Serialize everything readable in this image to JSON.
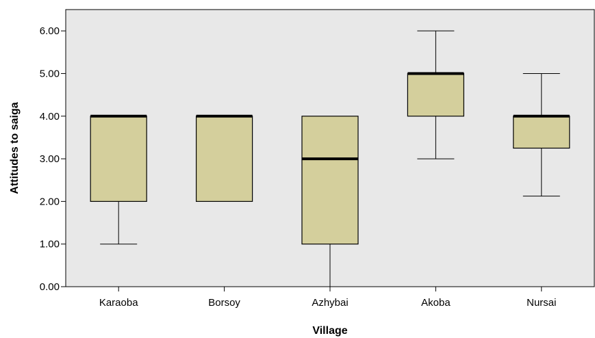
{
  "chart_data": {
    "type": "boxplot",
    "xlabel": "Village",
    "ylabel": "Attitudes to saiga",
    "ylim": [
      0,
      6.5
    ],
    "y_ticks": [
      "0.00",
      "1.00",
      "2.00",
      "3.00",
      "4.00",
      "5.00",
      "6.00"
    ],
    "grid": false,
    "categories": [
      "Karaoba",
      "Borsoy",
      "Azhybai",
      "Akoba",
      "Nursai"
    ],
    "boxes": [
      {
        "category": "Karaoba",
        "whisker_low": 1.0,
        "q1": 2.0,
        "median": 4.0,
        "q3": 4.0,
        "whisker_high": 4.0
      },
      {
        "category": "Borsoy",
        "whisker_low": 2.0,
        "q1": 2.0,
        "median": 4.0,
        "q3": 4.0,
        "whisker_high": 4.0
      },
      {
        "category": "Azhybai",
        "whisker_low": 0.0,
        "q1": 1.0,
        "median": 3.0,
        "q3": 4.0,
        "whisker_high": 4.0
      },
      {
        "category": "Akoba",
        "whisker_low": 3.0,
        "q1": 4.0,
        "median": 5.0,
        "q3": 5.0,
        "whisker_high": 6.0
      },
      {
        "category": "Nursai",
        "whisker_low": 2.125,
        "q1": 3.25,
        "median": 4.0,
        "q3": 4.0,
        "whisker_high": 5.0
      }
    ],
    "colors": {
      "plot_background": "#e8e8e8",
      "box_fill": "#d4cf9c",
      "line": "#000000"
    }
  }
}
